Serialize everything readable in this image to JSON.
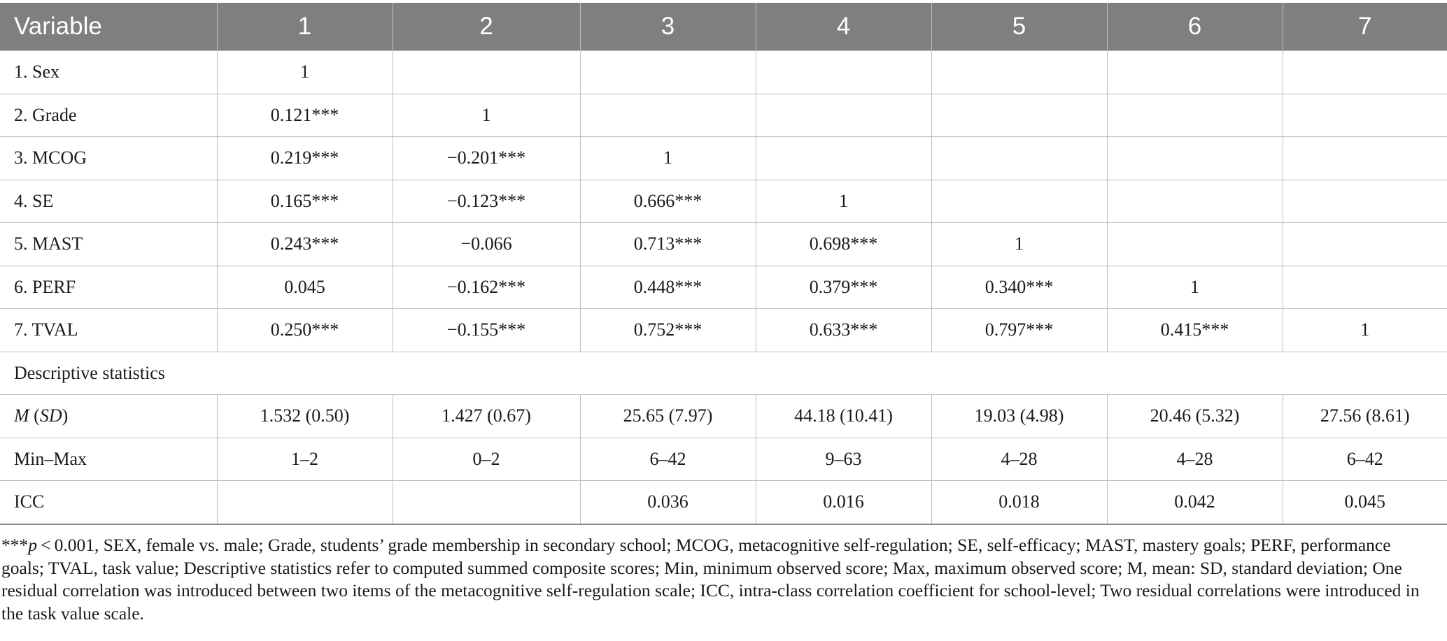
{
  "header": [
    "Variable",
    "1",
    "2",
    "3",
    "4",
    "5",
    "6",
    "7"
  ],
  "correlation_rows": [
    {
      "label": "1. Sex",
      "cells": [
        "1",
        "",
        "",
        "",
        "",
        "",
        ""
      ]
    },
    {
      "label": "2. Grade",
      "cells": [
        "0.121***",
        "1",
        "",
        "",
        "",
        "",
        ""
      ]
    },
    {
      "label": "3. MCOG",
      "cells": [
        "0.219***",
        "−0.201***",
        "1",
        "",
        "",
        "",
        ""
      ]
    },
    {
      "label": "4. SE",
      "cells": [
        "0.165***",
        "−0.123***",
        "0.666***",
        "1",
        "",
        "",
        ""
      ]
    },
    {
      "label": "5. MAST",
      "cells": [
        "0.243***",
        "−0.066",
        "0.713***",
        "0.698***",
        "1",
        "",
        ""
      ]
    },
    {
      "label": "6. PERF",
      "cells": [
        "0.045",
        "−0.162***",
        "0.448***",
        "0.379***",
        "0.340***",
        "1",
        ""
      ]
    },
    {
      "label": "7. TVAL",
      "cells": [
        "0.250***",
        "−0.155***",
        "0.752***",
        "0.633***",
        "0.797***",
        "0.415***",
        "1"
      ]
    }
  ],
  "section_label": "Descriptive statistics",
  "descriptive_rows": [
    {
      "label_italic_m": "M",
      "label_paren_open": " (",
      "label_italic_sd": "SD",
      "label_paren_close": ")",
      "cells": [
        "1.532 (0.50)",
        "1.427 (0.67)",
        "25.65 (7.97)",
        "44.18 (10.41)",
        "19.03 (4.98)",
        "20.46 (5.32)",
        "27.56 (8.61)"
      ]
    },
    {
      "label": "Min–Max",
      "cells": [
        "1–2",
        "0–2",
        "6–42",
        "9–63",
        "4–28",
        "4–28",
        "6–42"
      ]
    },
    {
      "label": "ICC",
      "cells": [
        "",
        "",
        "0.036",
        "0.016",
        "0.018",
        "0.042",
        "0.045"
      ]
    }
  ],
  "note": {
    "stars": "***",
    "p_italic": "p",
    "text": " < 0.001, SEX, female vs. male; Grade, students’ grade membership in secondary school; MCOG, metacognitive self-regulation; SE, self-efficacy; MAST, mastery goals; PERF, performance goals; TVAL, task value; Descriptive statistics refer to computed summed composite scores; Min, minimum observed score; Max, maximum observed score; M, mean: SD, standard deviation; One residual correlation was introduced between two items of the metacognitive self-regulation scale; ICC, intra-class correlation coefficient for school-level; Two residual correlations were introduced in the task value scale."
  }
}
